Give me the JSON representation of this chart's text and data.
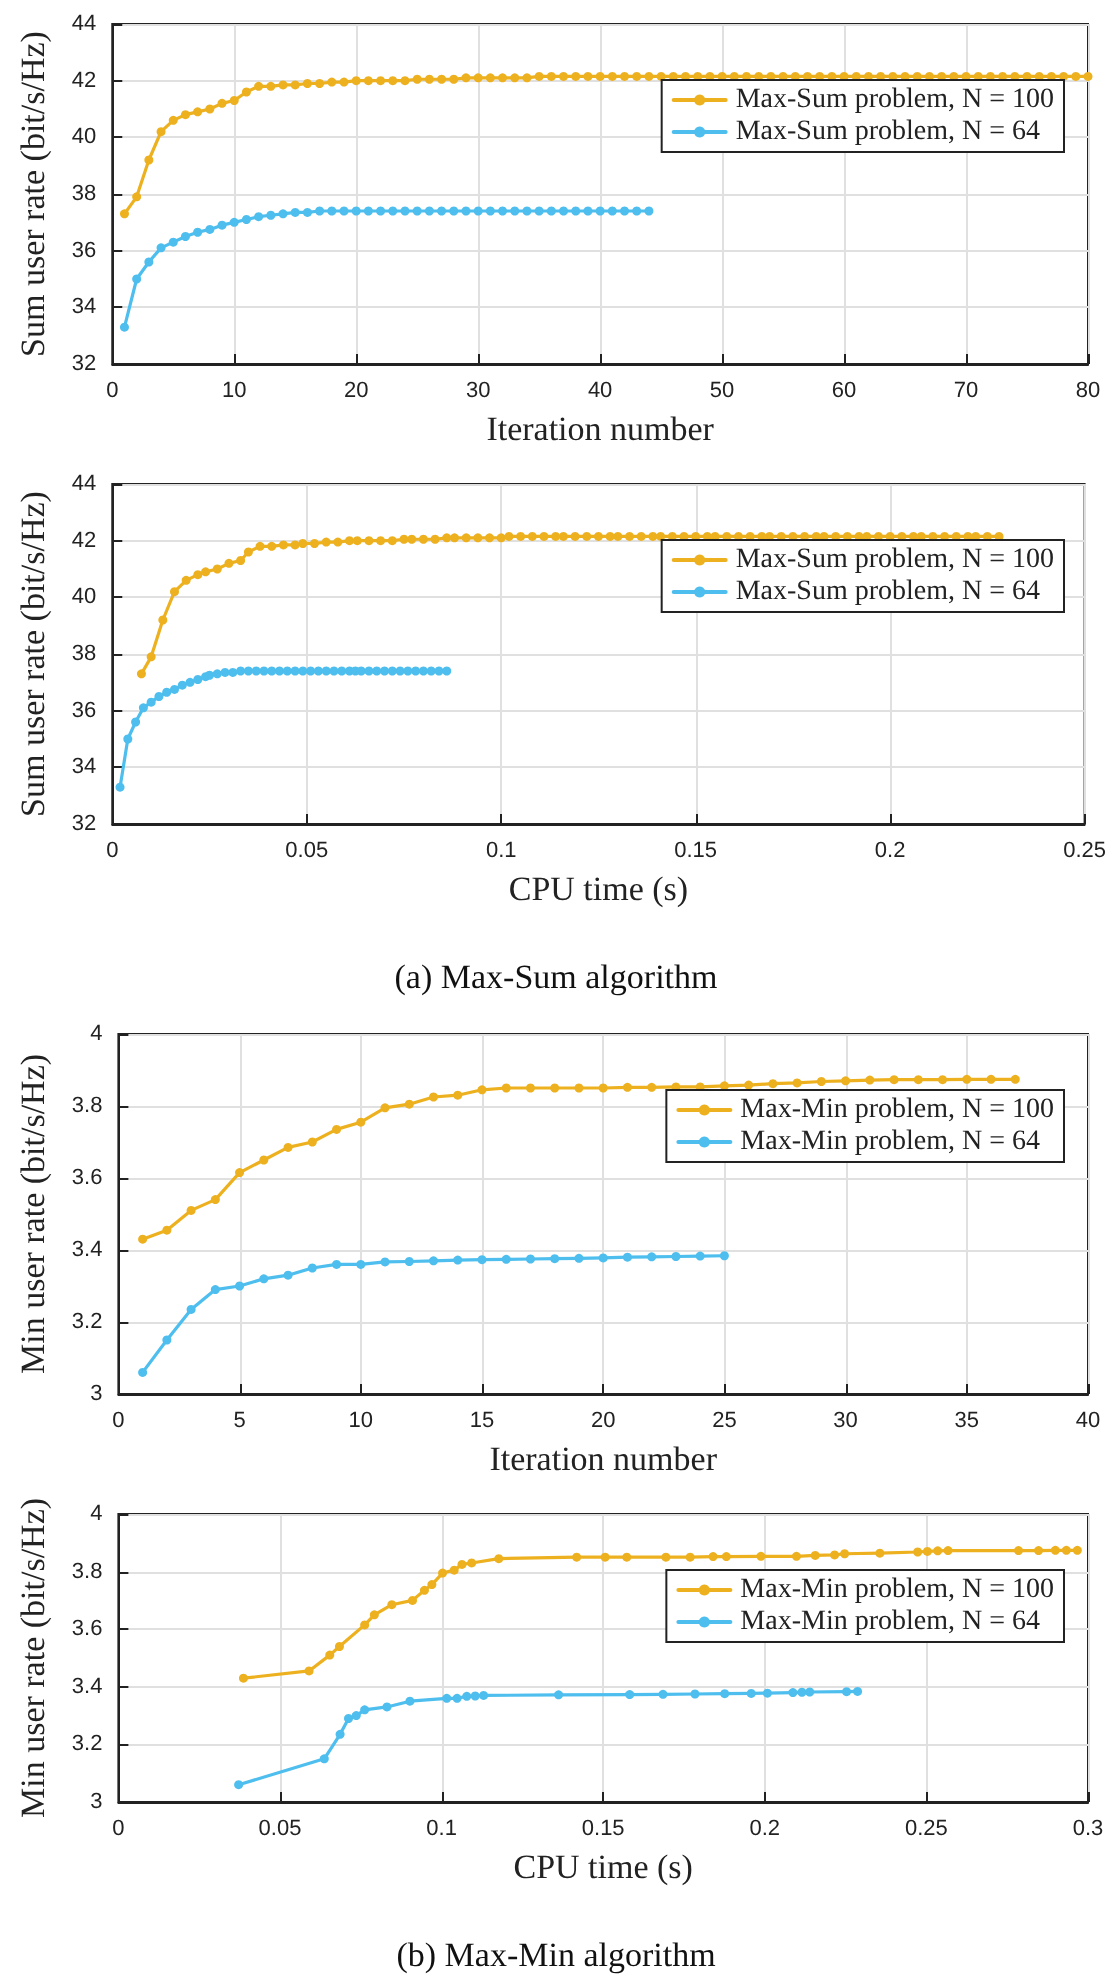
{
  "chart_data": [
    {
      "type": "line",
      "xlabel": "Iteration number",
      "ylabel": "Sum user rate (bit/s/Hz)",
      "xlim": [
        0,
        80
      ],
      "xticks": [
        0,
        10,
        20,
        30,
        40,
        50,
        60,
        70,
        80
      ],
      "ylim": [
        32,
        44
      ],
      "yticks": [
        32,
        34,
        36,
        38,
        40,
        42,
        44
      ],
      "grid": true,
      "legend": "right",
      "marker": "circle",
      "series": [
        {
          "name": "Max-Sum problem, N = 100",
          "color": "#edb120",
          "x": [
            1,
            2,
            3,
            4,
            5,
            6,
            7,
            8,
            9,
            10,
            11,
            12,
            13,
            14,
            15,
            16,
            17,
            18,
            19,
            20,
            21,
            22,
            23,
            24,
            25,
            26,
            27,
            28,
            29,
            30,
            31,
            32,
            33,
            34,
            35,
            36,
            37,
            38,
            39,
            40,
            41,
            42,
            43,
            44,
            45,
            46,
            47,
            48,
            49,
            50,
            51,
            52,
            53,
            54,
            55,
            56,
            57,
            58,
            59,
            60,
            61,
            62,
            63,
            64,
            65,
            66,
            67,
            68,
            69,
            70,
            71,
            72,
            73,
            74,
            75,
            76,
            77,
            78,
            79,
            80
          ],
          "values": [
            37.3,
            37.9,
            39.2,
            40.2,
            40.6,
            40.8,
            40.9,
            41.0,
            41.2,
            41.3,
            41.6,
            41.8,
            41.8,
            41.85,
            41.85,
            41.9,
            41.9,
            41.95,
            41.95,
            42.0,
            42.0,
            42.0,
            42.0,
            42.0,
            42.05,
            42.05,
            42.05,
            42.05,
            42.1,
            42.1,
            42.1,
            42.1,
            42.1,
            42.1,
            42.15,
            42.15,
            42.15,
            42.15,
            42.15,
            42.15,
            42.15,
            42.15,
            42.15,
            42.15,
            42.15,
            42.15,
            42.15,
            42.15,
            42.15,
            42.15,
            42.15,
            42.15,
            42.15,
            42.15,
            42.15,
            42.15,
            42.15,
            42.15,
            42.15,
            42.15,
            42.15,
            42.15,
            42.15,
            42.15,
            42.15,
            42.15,
            42.15,
            42.15,
            42.15,
            42.15,
            42.15,
            42.15,
            42.15,
            42.15,
            42.15,
            42.15,
            42.15,
            42.15,
            42.15,
            42.15
          ]
        },
        {
          "name": "Max-Sum problem, N = 64",
          "color": "#4dbeee",
          "x": [
            1,
            2,
            3,
            4,
            5,
            6,
            7,
            8,
            9,
            10,
            11,
            12,
            13,
            14,
            15,
            16,
            17,
            18,
            19,
            20,
            21,
            22,
            23,
            24,
            25,
            26,
            27,
            28,
            29,
            30,
            31,
            32,
            33,
            34,
            35,
            36,
            37,
            38,
            39,
            40,
            41,
            42,
            43,
            44
          ],
          "values": [
            33.3,
            35.0,
            35.6,
            36.1,
            36.3,
            36.5,
            36.65,
            36.75,
            36.9,
            37.0,
            37.1,
            37.2,
            37.25,
            37.3,
            37.35,
            37.35,
            37.4,
            37.4,
            37.4,
            37.4,
            37.4,
            37.4,
            37.4,
            37.4,
            37.4,
            37.4,
            37.4,
            37.4,
            37.4,
            37.4,
            37.4,
            37.4,
            37.4,
            37.4,
            37.4,
            37.4,
            37.4,
            37.4,
            37.4,
            37.4,
            37.4,
            37.4,
            37.4,
            37.4
          ]
        }
      ]
    },
    {
      "type": "line",
      "xlabel": "CPU time (s)",
      "ylabel": "Sum user rate (bit/s/Hz)",
      "xlim": [
        0,
        0.25
      ],
      "xticks": [
        0,
        0.05,
        0.1,
        0.15,
        0.2,
        0.25
      ],
      "ylim": [
        32,
        44
      ],
      "yticks": [
        32,
        34,
        36,
        38,
        40,
        42,
        44
      ],
      "grid": true,
      "legend": "right",
      "marker": "circle",
      "annotations": [
        "(a) Max-Sum algorithm"
      ],
      "series": [
        {
          "name": "Max-Sum problem, N = 100",
          "color": "#edb120",
          "x": [
            0.0075,
            0.01,
            0.013,
            0.016,
            0.019,
            0.022,
            0.024,
            0.027,
            0.03,
            0.033,
            0.035,
            0.038,
            0.041,
            0.044,
            0.047,
            0.049,
            0.052,
            0.055,
            0.058,
            0.061,
            0.063,
            0.066,
            0.069,
            0.072,
            0.075,
            0.077,
            0.08,
            0.083,
            0.086,
            0.088,
            0.091,
            0.094,
            0.097,
            0.1,
            0.102,
            0.105,
            0.108,
            0.111,
            0.114,
            0.116,
            0.119,
            0.122,
            0.125,
            0.128,
            0.13,
            0.133,
            0.136,
            0.139,
            0.141,
            0.144,
            0.147,
            0.15,
            0.153,
            0.155,
            0.158,
            0.161,
            0.164,
            0.167,
            0.169,
            0.172,
            0.175,
            0.178,
            0.181,
            0.183,
            0.186,
            0.189,
            0.192,
            0.194,
            0.197,
            0.2,
            0.203,
            0.206,
            0.208,
            0.211,
            0.214,
            0.217,
            0.22,
            0.222,
            0.225,
            0.228
          ],
          "values": [
            37.3,
            37.9,
            39.2,
            40.2,
            40.6,
            40.8,
            40.9,
            41.0,
            41.2,
            41.3,
            41.6,
            41.8,
            41.8,
            41.85,
            41.85,
            41.9,
            41.9,
            41.95,
            41.95,
            42.0,
            42.0,
            42.0,
            42.0,
            42.0,
            42.05,
            42.05,
            42.05,
            42.05,
            42.1,
            42.1,
            42.1,
            42.1,
            42.1,
            42.1,
            42.15,
            42.15,
            42.15,
            42.15,
            42.15,
            42.15,
            42.15,
            42.15,
            42.15,
            42.15,
            42.15,
            42.15,
            42.15,
            42.15,
            42.15,
            42.15,
            42.15,
            42.15,
            42.15,
            42.15,
            42.15,
            42.15,
            42.15,
            42.15,
            42.15,
            42.15,
            42.15,
            42.15,
            42.15,
            42.15,
            42.15,
            42.15,
            42.15,
            42.15,
            42.15,
            42.15,
            42.15,
            42.15,
            42.15,
            42.15,
            42.15,
            42.15,
            42.15,
            42.15,
            42.15,
            42.15
          ]
        },
        {
          "name": "Max-Sum problem, N = 64",
          "color": "#4dbeee",
          "x": [
            0.002,
            0.004,
            0.006,
            0.008,
            0.01,
            0.012,
            0.014,
            0.016,
            0.018,
            0.02,
            0.022,
            0.024,
            0.025,
            0.027,
            0.029,
            0.031,
            0.033,
            0.035,
            0.037,
            0.039,
            0.041,
            0.043,
            0.045,
            0.047,
            0.049,
            0.051,
            0.053,
            0.055,
            0.057,
            0.059,
            0.061,
            0.0625,
            0.064,
            0.066,
            0.068,
            0.07,
            0.072,
            0.074,
            0.076,
            0.078,
            0.08,
            0.082,
            0.084,
            0.086
          ],
          "values": [
            33.3,
            35.0,
            35.6,
            36.1,
            36.3,
            36.5,
            36.65,
            36.75,
            36.9,
            37.0,
            37.1,
            37.2,
            37.25,
            37.3,
            37.35,
            37.35,
            37.4,
            37.4,
            37.4,
            37.4,
            37.4,
            37.4,
            37.4,
            37.4,
            37.4,
            37.4,
            37.4,
            37.4,
            37.4,
            37.4,
            37.4,
            37.4,
            37.4,
            37.4,
            37.4,
            37.4,
            37.4,
            37.4,
            37.4,
            37.4,
            37.4,
            37.4,
            37.4,
            37.4
          ]
        }
      ]
    },
    {
      "type": "line",
      "xlabel": "Iteration number",
      "ylabel": "Min user rate (bit/s/Hz)",
      "xlim": [
        0,
        40
      ],
      "xticks": [
        0,
        5,
        10,
        15,
        20,
        25,
        30,
        35,
        40
      ],
      "ylim": [
        3,
        4
      ],
      "yticks": [
        3,
        3.2,
        3.4,
        3.6,
        3.8,
        4
      ],
      "grid": true,
      "legend": "right",
      "marker": "circle",
      "series": [
        {
          "name": "Max-Min problem, N = 100",
          "color": "#edb120",
          "x": [
            1,
            2,
            3,
            4,
            5,
            6,
            7,
            8,
            9,
            10,
            11,
            12,
            13,
            14,
            15,
            16,
            17,
            18,
            19,
            20,
            21,
            22,
            23,
            24,
            25,
            26,
            27,
            28,
            29,
            30,
            31,
            32,
            33,
            34,
            35,
            36,
            37
          ],
          "values": [
            3.43,
            3.455,
            3.51,
            3.54,
            3.615,
            3.65,
            3.685,
            3.7,
            3.735,
            3.755,
            3.795,
            3.805,
            3.825,
            3.83,
            3.845,
            3.85,
            3.85,
            3.85,
            3.85,
            3.85,
            3.852,
            3.852,
            3.853,
            3.853,
            3.856,
            3.858,
            3.862,
            3.864,
            3.868,
            3.87,
            3.872,
            3.873,
            3.873,
            3.873,
            3.874,
            3.874,
            3.874
          ]
        },
        {
          "name": "Max-Min problem, N = 64",
          "color": "#4dbeee",
          "x": [
            1,
            2,
            3,
            4,
            5,
            6,
            7,
            8,
            9,
            10,
            11,
            12,
            13,
            14,
            15,
            16,
            17,
            18,
            19,
            20,
            21,
            22,
            23,
            24,
            25
          ],
          "values": [
            3.06,
            3.15,
            3.235,
            3.29,
            3.3,
            3.32,
            3.33,
            3.35,
            3.36,
            3.36,
            3.367,
            3.368,
            3.37,
            3.372,
            3.373,
            3.374,
            3.375,
            3.376,
            3.377,
            3.378,
            3.38,
            3.381,
            3.382,
            3.383,
            3.384
          ]
        }
      ]
    },
    {
      "type": "line",
      "xlabel": "CPU time (s)",
      "ylabel": "Min user rate (bit/s/Hz)",
      "xlim": [
        0,
        0.3
      ],
      "xticks": [
        0,
        0.05,
        0.1,
        0.15,
        0.2,
        0.25,
        0.3
      ],
      "ylim": [
        3,
        4
      ],
      "yticks": [
        3,
        3.2,
        3.4,
        3.6,
        3.8,
        4
      ],
      "grid": true,
      "legend": "right",
      "marker": "circle",
      "annotations": [
        "(b) Max-Min algorithm"
      ],
      "series": [
        {
          "name": "Max-Min problem, N = 100",
          "color": "#edb120",
          "x": [
            0.0387,
            0.059,
            0.0654,
            0.0684,
            0.0762,
            0.0792,
            0.0846,
            0.091,
            0.0947,
            0.097,
            0.1003,
            0.1039,
            0.1063,
            0.1093,
            0.1177,
            0.1418,
            0.1506,
            0.1573,
            0.1694,
            0.1769,
            0.184,
            0.1881,
            0.1988,
            0.2098,
            0.2156,
            0.2216,
            0.2247,
            0.2356,
            0.2473,
            0.2503,
            0.2535,
            0.2567,
            0.2785,
            0.2847,
            0.2899,
            0.2933,
            0.2967
          ],
          "values": [
            3.43,
            3.455,
            3.51,
            3.54,
            3.615,
            3.65,
            3.685,
            3.7,
            3.735,
            3.755,
            3.795,
            3.805,
            3.825,
            3.83,
            3.845,
            3.85,
            3.85,
            3.85,
            3.85,
            3.85,
            3.852,
            3.852,
            3.853,
            3.853,
            3.856,
            3.858,
            3.862,
            3.864,
            3.868,
            3.87,
            3.872,
            3.873,
            3.873,
            3.873,
            3.874,
            3.874,
            3.874
          ]
        },
        {
          "name": "Max-Min problem, N = 64",
          "color": "#4dbeee",
          "x": [
            0.0372,
            0.0637,
            0.0686,
            0.0712,
            0.0736,
            0.0762,
            0.0831,
            0.0902,
            0.1016,
            0.1048,
            0.1078,
            0.1104,
            0.113,
            0.1362,
            0.1582,
            0.1685,
            0.1784,
            0.1876,
            0.1958,
            0.2008,
            0.2087,
            0.2115,
            0.2139,
            0.2253,
            0.2287
          ],
          "values": [
            3.06,
            3.15,
            3.235,
            3.29,
            3.3,
            3.32,
            3.33,
            3.35,
            3.36,
            3.36,
            3.367,
            3.368,
            3.37,
            3.372,
            3.373,
            3.374,
            3.375,
            3.376,
            3.377,
            3.378,
            3.38,
            3.381,
            3.382,
            3.383,
            3.384
          ]
        }
      ]
    }
  ]
}
